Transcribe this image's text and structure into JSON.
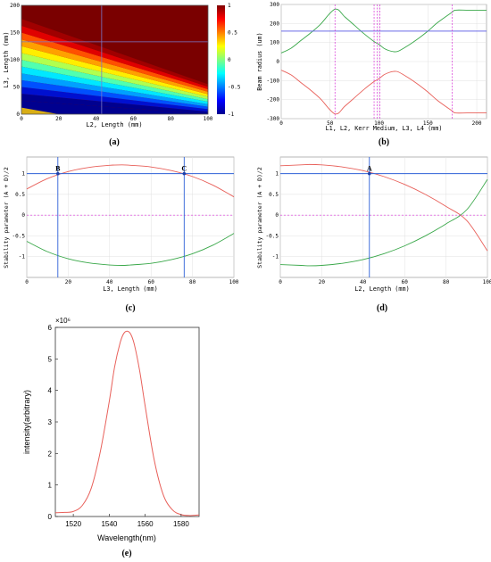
{
  "colors": {
    "red": "#e8605a",
    "green": "#3aa84a",
    "blue": "#2f62d8",
    "magenta": "#d62fd6",
    "grid": "#e0e0e0",
    "axis": "#444444"
  },
  "chart_data": [
    {
      "panel": "(a)",
      "type": "heatmap",
      "xlabel": "L2, Length (mm)",
      "ylabel": "L3, Length (mm)",
      "xlim": [
        0,
        100
      ],
      "ylim": [
        0,
        200
      ],
      "xticks": [
        "0",
        "20",
        "40",
        "60",
        "80",
        "100"
      ],
      "yticks": [
        "0",
        "50",
        "100",
        "150",
        "200"
      ],
      "colorbar_ticks": [
        "1",
        "0.5",
        "0",
        "-0.5",
        "-1"
      ],
      "colorbar_range": [
        -1,
        1
      ],
      "band_lower_edge": [
        [
          0,
          25
        ],
        [
          100,
          0
        ]
      ],
      "band_upper_edge": [
        [
          0,
          175
        ],
        [
          100,
          55
        ]
      ],
      "crosshair": {
        "x": 43,
        "y": 133
      }
    },
    {
      "panel": "(b)",
      "type": "line",
      "xlabel": "L1, L2, Kerr Medium, L3, L4 (mm)",
      "ylabel": "Beam radius (um)",
      "xlim": [
        0,
        210
      ],
      "ylim": [
        -300,
        300
      ],
      "xticks": [
        "0",
        "50",
        "100",
        "150",
        "200"
      ],
      "yticks": [
        "300",
        "200",
        "100",
        "0",
        "-100",
        "-200",
        "-300"
      ],
      "series": [
        {
          "color": "green",
          "x": [
            0,
            10,
            20,
            30,
            40,
            55,
            65,
            75,
            85,
            95,
            100,
            105,
            110,
            115,
            120,
            130,
            140,
            150,
            160,
            175,
            178,
            190,
            200,
            210
          ],
          "y": [
            45,
            70,
            110,
            150,
            195,
            275,
            235,
            190,
            145,
            105,
            90,
            70,
            58,
            52,
            55,
            85,
            120,
            160,
            205,
            260,
            270,
            270,
            270,
            270
          ]
        },
        {
          "color": "red",
          "x": [
            0,
            10,
            20,
            30,
            40,
            55,
            65,
            75,
            85,
            95,
            100,
            105,
            110,
            115,
            120,
            130,
            140,
            150,
            160,
            175,
            178,
            190,
            200,
            210
          ],
          "y": [
            -45,
            -70,
            -110,
            -150,
            -195,
            -275,
            -235,
            -190,
            -145,
            -105,
            -90,
            -70,
            -58,
            -52,
            -55,
            -85,
            -120,
            -160,
            -205,
            -260,
            -270,
            -270,
            -270,
            -270
          ]
        }
      ],
      "hline": 160,
      "vlines": [
        55,
        95,
        98,
        101,
        175
      ]
    },
    {
      "panel": "(c)",
      "type": "line",
      "xlabel": "L3, Length (mm)",
      "ylabel": "Stability parameter (A + D)/2",
      "xlim": [
        0,
        100
      ],
      "ylim": [
        -1.5,
        1.4
      ],
      "xticks": [
        "0",
        "20",
        "40",
        "60",
        "80",
        "100"
      ],
      "yticks": [
        "1",
        "0.5",
        "0",
        "-0.5",
        "-1"
      ],
      "series": [
        {
          "color": "red",
          "x": [
            0,
            10,
            20,
            30,
            40,
            46,
            50,
            60,
            70,
            80,
            90,
            100
          ],
          "y": [
            0.63,
            0.88,
            1.05,
            1.15,
            1.2,
            1.21,
            1.2,
            1.16,
            1.07,
            0.93,
            0.72,
            0.44
          ]
        },
        {
          "color": "green",
          "x": [
            0,
            10,
            20,
            30,
            40,
            46,
            50,
            60,
            70,
            80,
            90,
            100
          ],
          "y": [
            -0.63,
            -0.88,
            -1.05,
            -1.15,
            -1.2,
            -1.21,
            -1.2,
            -1.16,
            -1.07,
            -0.93,
            -0.72,
            -0.44
          ]
        }
      ],
      "hline_blue": 1,
      "hline_magenta": 0,
      "vlines": [
        15,
        76
      ],
      "points": [
        {
          "label": "B",
          "x": 15,
          "y": 1
        },
        {
          "label": "C",
          "x": 76,
          "y": 1
        }
      ]
    },
    {
      "panel": "(d)",
      "type": "line",
      "xlabel": "L2, Length (mm)",
      "ylabel": "Stability parameter (A + D)/2",
      "xlim": [
        0,
        100
      ],
      "ylim": [
        -1.5,
        1.4
      ],
      "xticks": [
        "0",
        "20",
        "40",
        "60",
        "80",
        "100"
      ],
      "yticks": [
        "1",
        "0.5",
        "0",
        "-0.5",
        "-1"
      ],
      "series": [
        {
          "color": "red",
          "x": [
            0,
            10,
            14,
            20,
            30,
            40,
            50,
            60,
            70,
            80,
            90,
            100
          ],
          "y": [
            1.19,
            1.21,
            1.22,
            1.21,
            1.16,
            1.07,
            0.93,
            0.74,
            0.5,
            0.21,
            -0.13,
            -0.86
          ]
        },
        {
          "color": "green",
          "x": [
            0,
            10,
            14,
            20,
            30,
            40,
            50,
            60,
            70,
            80,
            90,
            100
          ],
          "y": [
            -1.19,
            -1.21,
            -1.22,
            -1.21,
            -1.16,
            -1.07,
            -0.93,
            -0.74,
            -0.5,
            -0.21,
            0.13,
            0.86
          ]
        }
      ],
      "hline_blue": 1,
      "hline_magenta": 0,
      "vlines": [
        43
      ],
      "points": [
        {
          "label": "A",
          "x": 43,
          "y": 1
        }
      ]
    },
    {
      "panel": "(e)",
      "type": "line",
      "xlabel": "Wavelength(nm)",
      "ylabel": "intensity(arbitrary)",
      "exponent_label": "×10⁶",
      "xlim": [
        1510,
        1590
      ],
      "ylim": [
        0,
        6
      ],
      "xticks": [
        "1520",
        "1540",
        "1560",
        "1580"
      ],
      "yticks": [
        "0",
        "1",
        "2",
        "3",
        "4",
        "5",
        "6"
      ],
      "series": [
        {
          "color": "red",
          "x": [
            1510,
            1515,
            1520,
            1525,
            1530,
            1535,
            1540,
            1543,
            1546,
            1548,
            1550,
            1552,
            1554,
            1557,
            1560,
            1565,
            1570,
            1575,
            1580,
            1585,
            1590
          ],
          "y": [
            0.12,
            0.13,
            0.16,
            0.35,
            0.9,
            2.05,
            3.65,
            4.75,
            5.5,
            5.8,
            5.88,
            5.78,
            5.45,
            4.6,
            3.5,
            1.8,
            0.7,
            0.22,
            0.06,
            0.03,
            0.05
          ]
        }
      ]
    }
  ],
  "captions": [
    "(a)",
    "(b)",
    "(c)",
    "(d)",
    "(e)"
  ]
}
